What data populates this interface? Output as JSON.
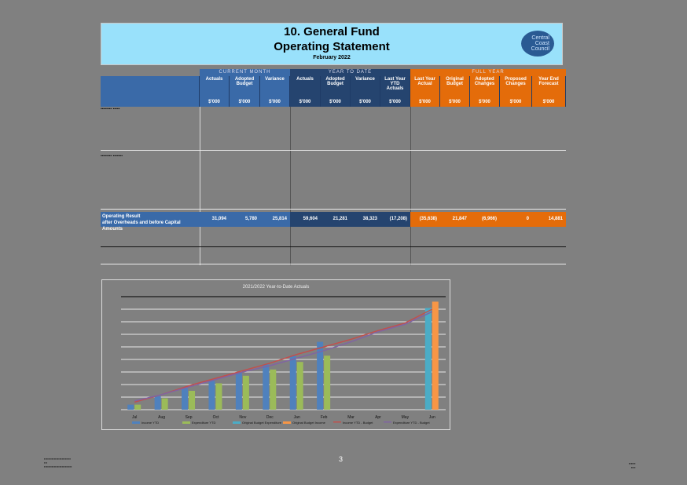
{
  "header": {
    "title_line1": "10.  General Fund",
    "title_line2": "Operating Statement",
    "period": "February 2022",
    "logo": [
      "Central",
      "Coast",
      "Council"
    ]
  },
  "table": {
    "groups": [
      {
        "label": "CURRENT MONTH",
        "color": "#3a6aa8"
      },
      {
        "label": "YEAR TO DATE",
        "color": "#25446f"
      },
      {
        "label": "FULL YEAR",
        "color": "#e46c0a"
      }
    ],
    "columns": [
      {
        "label": "Actuals",
        "unit": "$'000"
      },
      {
        "label": "Adopted Budget",
        "unit": "$'000"
      },
      {
        "label": "Variance",
        "unit": "$'000"
      },
      {
        "label": "Actuals",
        "unit": "$'000"
      },
      {
        "label": "Adopted Budget",
        "unit": "$'000"
      },
      {
        "label": "Variance",
        "unit": "$'000"
      },
      {
        "label": "Last Year YTD Actuals",
        "unit": "$'000"
      },
      {
        "label": "Last Year Actual",
        "unit": "$'000"
      },
      {
        "label": "Original Budget",
        "unit": "$'000"
      },
      {
        "label": "Adopted Changes",
        "unit": "$'000"
      },
      {
        "label": "Proposed Changes",
        "unit": "$'000"
      },
      {
        "label": "Year End Forecast",
        "unit": "$'000"
      }
    ],
    "operating_result": {
      "label_line1": "Operating Result",
      "label_line2": "after Overheads and before Capital Amounts",
      "values": [
        "31,094",
        "5,780",
        "25,814",
        "59,604",
        "21,281",
        "38,323",
        "(17,208)",
        "(35,638)",
        "21,847",
        "(6,966)",
        "0",
        "14,881"
      ]
    }
  },
  "chart_data": {
    "type": "bar",
    "title": "2021/2022 Year-to-Date Actuals",
    "categories": [
      "Jul",
      "Aug",
      "Sep",
      "Oct",
      "Nov",
      "Dec",
      "Jan",
      "Feb",
      "Mar",
      "Apr",
      "May",
      "Jun"
    ],
    "y_gridlines": 9,
    "series": [
      {
        "name": "Income YTD",
        "type": "bar",
        "color": "#4f81bd",
        "values": [
          4,
          11,
          17,
          23,
          30,
          36,
          43,
          54,
          null,
          null,
          null,
          null
        ]
      },
      {
        "name": "Expenditure YTD",
        "type": "bar",
        "color": "#9bbb59",
        "values": [
          4,
          9,
          15,
          21,
          27,
          32,
          38,
          43,
          null,
          null,
          null,
          null
        ]
      },
      {
        "name": "Original Budget Expenditure",
        "type": "bar",
        "color": "#4bacc6",
        "values": [
          null,
          null,
          null,
          null,
          null,
          null,
          null,
          null,
          null,
          null,
          null,
          81
        ]
      },
      {
        "name": "Original Budget Income",
        "type": "bar",
        "color": "#f79646",
        "values": [
          null,
          null,
          null,
          null,
          null,
          null,
          null,
          null,
          null,
          null,
          null,
          86
        ]
      },
      {
        "name": "Income YTD - Budget",
        "type": "line",
        "color": "#c0504d",
        "values": [
          6,
          12,
          19,
          25,
          31,
          37,
          44,
          50,
          56,
          63,
          69,
          80
        ]
      },
      {
        "name": "Expenditure YTD - Budget",
        "type": "line",
        "color": "#8064a2",
        "values": [
          7,
          12,
          18,
          24,
          30,
          35,
          41,
          47,
          54,
          62,
          68,
          78
        ]
      }
    ]
  },
  "footer": {
    "page_number": "3"
  }
}
